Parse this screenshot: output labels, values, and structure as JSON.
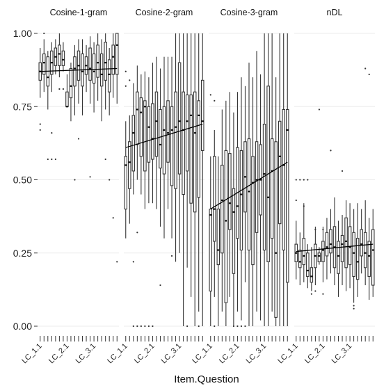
{
  "chart_data": {
    "type": "box",
    "xlabel": "Item.Question",
    "ylabel": "",
    "ylim": [
      0,
      1
    ],
    "yticks": [
      0,
      0.25,
      0.5,
      0.75,
      1
    ],
    "ytick_labels": [
      "0.00",
      "0.25",
      "0.50",
      "0.75",
      "1.00"
    ],
    "x_tick_labels": [
      "LC_1.1",
      "LC_2.1",
      "LC_3.1"
    ],
    "grid": true,
    "legend": "none",
    "categories_per_panel": 21,
    "panels": [
      {
        "name": "Cosine-1-gram",
        "trend_line": [
          0.87,
          0.88
        ],
        "boxes": [
          {
            "q1": 0.84,
            "median": 0.87,
            "q3": 0.9,
            "lo": 0.78,
            "hi": 0.95,
            "out": [
              0.69,
              0.67
            ]
          },
          {
            "q1": 0.86,
            "median": 0.9,
            "q3": 0.93,
            "lo": 0.8,
            "hi": 0.98,
            "out": [
              1.0
            ]
          },
          {
            "q1": 0.82,
            "median": 0.85,
            "q3": 0.92,
            "lo": 0.74,
            "hi": 0.94,
            "out": [
              0.57
            ]
          },
          {
            "q1": 0.86,
            "median": 0.9,
            "q3": 0.94,
            "lo": 0.8,
            "hi": 0.97,
            "out": [
              0.57,
              0.66
            ]
          },
          {
            "q1": 0.89,
            "median": 0.92,
            "q3": 0.95,
            "lo": 0.86,
            "hi": 0.98,
            "out": [
              0.57
            ]
          },
          {
            "q1": 0.89,
            "median": 0.93,
            "q3": 0.96,
            "lo": 0.85,
            "hi": 1.0,
            "out": [
              0.81
            ]
          },
          {
            "q1": 0.89,
            "median": 0.91,
            "q3": 0.94,
            "lo": 0.87,
            "hi": 0.97,
            "out": [
              0.81
            ]
          },
          {
            "q1": 0.75,
            "median": 0.75,
            "q3": 0.8,
            "lo": 0.75,
            "hi": 0.86,
            "out": []
          },
          {
            "q1": 0.78,
            "median": 0.82,
            "q3": 0.88,
            "lo": 0.7,
            "hi": 0.9,
            "out": []
          },
          {
            "q1": 0.82,
            "median": 0.88,
            "q3": 0.92,
            "lo": 0.72,
            "hi": 0.96,
            "out": [
              0.5
            ]
          },
          {
            "q1": 0.84,
            "median": 0.89,
            "q3": 0.94,
            "lo": 0.76,
            "hi": 0.98,
            "out": [
              0.64
            ]
          },
          {
            "q1": 0.82,
            "median": 0.87,
            "q3": 0.93,
            "lo": 0.72,
            "hi": 0.98,
            "out": []
          },
          {
            "q1": 0.86,
            "median": 0.89,
            "q3": 0.92,
            "lo": 0.8,
            "hi": 0.96,
            "out": []
          },
          {
            "q1": 0.84,
            "median": 0.88,
            "q3": 0.95,
            "lo": 0.76,
            "hi": 0.99,
            "out": [
              0.51
            ]
          },
          {
            "q1": 0.83,
            "median": 0.87,
            "q3": 0.93,
            "lo": 0.73,
            "hi": 0.97,
            "out": []
          },
          {
            "q1": 0.85,
            "median": 0.9,
            "q3": 0.96,
            "lo": 0.77,
            "hi": 1.0,
            "out": []
          },
          {
            "q1": 0.82,
            "median": 0.86,
            "q3": 0.93,
            "lo": 0.7,
            "hi": 0.98,
            "out": []
          },
          {
            "q1": 0.84,
            "median": 0.9,
            "q3": 0.97,
            "lo": 0.74,
            "hi": 1.0,
            "out": [
              0.57
            ]
          },
          {
            "q1": 0.8,
            "median": 0.86,
            "q3": 0.91,
            "lo": 0.72,
            "hi": 0.95,
            "out": [
              0.5
            ]
          },
          {
            "q1": 0.86,
            "median": 0.92,
            "q3": 0.96,
            "lo": 0.78,
            "hi": 1.0,
            "out": [
              0.37
            ]
          },
          {
            "q1": 0.86,
            "median": 0.96,
            "q3": 1.0,
            "lo": 0.76,
            "hi": 1.0,
            "out": [
              0.22
            ]
          }
        ]
      },
      {
        "name": "Cosine-2-gram",
        "trend_line": [
          0.61,
          0.69
        ],
        "boxes": [
          {
            "q1": 0.4,
            "median": 0.55,
            "q3": 0.58,
            "lo": 0.3,
            "hi": 0.7,
            "out": [
              0.87,
              0.82
            ]
          },
          {
            "q1": 0.47,
            "median": 0.56,
            "q3": 0.63,
            "lo": 0.35,
            "hi": 0.72,
            "out": [
              0.84
            ]
          },
          {
            "q1": 0.53,
            "median": 0.66,
            "q3": 0.72,
            "lo": 0.45,
            "hi": 0.83,
            "out": [
              0.0,
              0.22
            ]
          },
          {
            "q1": 0.62,
            "median": 0.74,
            "q3": 0.8,
            "lo": 0.5,
            "hi": 0.89,
            "out": [
              0.0,
              0.32
            ]
          },
          {
            "q1": 0.58,
            "median": 0.73,
            "q3": 0.78,
            "lo": 0.45,
            "hi": 0.86,
            "out": [
              0.0
            ]
          },
          {
            "q1": 0.53,
            "median": 0.75,
            "q3": 0.77,
            "lo": 0.4,
            "hi": 0.87,
            "out": [
              0.0
            ]
          },
          {
            "q1": 0.56,
            "median": 0.68,
            "q3": 0.75,
            "lo": 0.42,
            "hi": 0.85,
            "out": [
              0.0
            ]
          },
          {
            "q1": 0.57,
            "median": 0.64,
            "q3": 0.76,
            "lo": 0.42,
            "hi": 0.9,
            "out": [
              0.0
            ]
          },
          {
            "q1": 0.58,
            "median": 0.7,
            "q3": 0.8,
            "lo": 0.4,
            "hi": 0.92,
            "out": []
          },
          {
            "q1": 0.54,
            "median": 0.62,
            "q3": 0.74,
            "lo": 0.34,
            "hi": 0.88,
            "out": [
              0.14
            ]
          },
          {
            "q1": 0.52,
            "median": 0.67,
            "q3": 0.75,
            "lo": 0.3,
            "hi": 0.92,
            "out": []
          },
          {
            "q1": 0.56,
            "median": 0.66,
            "q3": 0.77,
            "lo": 0.4,
            "hi": 0.92,
            "out": []
          },
          {
            "q1": 0.48,
            "median": 0.67,
            "q3": 0.75,
            "lo": 0.3,
            "hi": 0.92,
            "out": [
              0.24
            ]
          },
          {
            "q1": 0.47,
            "median": 0.68,
            "q3": 0.8,
            "lo": 0.22,
            "hi": 1.0,
            "out": []
          },
          {
            "q1": 0.52,
            "median": 0.7,
            "q3": 0.9,
            "lo": 0.25,
            "hi": 1.0,
            "out": []
          },
          {
            "q1": 0.45,
            "median": 0.67,
            "q3": 0.8,
            "lo": 0.0,
            "hi": 1.0,
            "out": []
          },
          {
            "q1": 0.53,
            "median": 0.7,
            "q3": 0.79,
            "lo": 0.2,
            "hi": 1.0,
            "out": [
              0.0
            ]
          },
          {
            "q1": 0.42,
            "median": 0.72,
            "q3": 0.79,
            "lo": 0.1,
            "hi": 1.0,
            "out": []
          },
          {
            "q1": 0.39,
            "median": 0.66,
            "q3": 0.8,
            "lo": 0.0,
            "hi": 1.0,
            "out": []
          },
          {
            "q1": 0.44,
            "median": 0.72,
            "q3": 0.77,
            "lo": 0.05,
            "hi": 1.0,
            "out": [
              0.0
            ]
          },
          {
            "q1": 0.6,
            "median": 0.7,
            "q3": 0.84,
            "lo": 0.0,
            "hi": 1.0,
            "out": []
          }
        ]
      },
      {
        "name": "Cosine-3-gram",
        "trend_line": [
          0.4,
          0.56
        ],
        "boxes": [
          {
            "q1": 0.12,
            "median": 0.38,
            "q3": 0.4,
            "lo": 0.0,
            "hi": 0.58,
            "out": [
              0.79
            ]
          },
          {
            "q1": 0.29,
            "median": 0.4,
            "q3": 0.58,
            "lo": 0.1,
            "hi": 0.67,
            "out": [
              0.77,
              0.0
            ]
          },
          {
            "q1": 0.21,
            "median": 0.26,
            "q3": 0.4,
            "lo": 0.0,
            "hi": 0.58,
            "out": []
          },
          {
            "q1": 0.25,
            "median": 0.43,
            "q3": 0.55,
            "lo": 0.05,
            "hi": 0.74,
            "out": []
          },
          {
            "q1": 0.08,
            "median": 0.36,
            "q3": 0.6,
            "lo": 0.0,
            "hi": 0.77,
            "out": []
          },
          {
            "q1": 0.33,
            "median": 0.42,
            "q3": 0.59,
            "lo": 0.1,
            "hi": 0.8,
            "out": []
          },
          {
            "q1": 0.18,
            "median": 0.39,
            "q3": 0.47,
            "lo": 0.0,
            "hi": 0.73,
            "out": [
              0.0
            ]
          },
          {
            "q1": 0.3,
            "median": 0.41,
            "q3": 0.61,
            "lo": 0.05,
            "hi": 0.8,
            "out": [
              0.0
            ]
          },
          {
            "q1": 0.26,
            "median": 0.45,
            "q3": 0.6,
            "lo": 0.02,
            "hi": 0.85,
            "out": [
              0.0
            ]
          },
          {
            "q1": 0.39,
            "median": 0.51,
            "q3": 0.63,
            "lo": 0.15,
            "hi": 0.82,
            "out": [
              0.0
            ]
          },
          {
            "q1": 0.26,
            "median": 0.46,
            "q3": 0.64,
            "lo": 0.0,
            "hi": 0.9,
            "out": []
          },
          {
            "q1": 0.21,
            "median": 0.49,
            "q3": 0.58,
            "lo": 0.0,
            "hi": 0.85,
            "out": []
          },
          {
            "q1": 0.32,
            "median": 0.5,
            "q3": 0.63,
            "lo": 0.05,
            "hi": 0.94,
            "out": []
          },
          {
            "q1": 0.38,
            "median": 0.5,
            "q3": 0.62,
            "lo": 0.02,
            "hi": 0.86,
            "out": []
          },
          {
            "q1": 0.26,
            "median": 0.52,
            "q3": 0.69,
            "lo": 0.0,
            "hi": 1.0,
            "out": []
          },
          {
            "q1": 0.22,
            "median": 0.44,
            "q3": 0.82,
            "lo": 0.0,
            "hi": 1.0,
            "out": []
          },
          {
            "q1": 0.3,
            "median": 0.53,
            "q3": 0.64,
            "lo": 0.05,
            "hi": 1.0,
            "out": []
          },
          {
            "q1": 0.03,
            "median": 0.25,
            "q3": 0.63,
            "lo": 0.0,
            "hi": 0.85,
            "out": []
          },
          {
            "q1": 0.35,
            "median": 0.58,
            "q3": 0.7,
            "lo": 0.0,
            "hi": 1.0,
            "out": []
          },
          {
            "q1": 0.26,
            "median": 0.55,
            "q3": 0.74,
            "lo": 0.0,
            "hi": 1.0,
            "out": []
          },
          {
            "q1": 0.15,
            "median": 0.67,
            "q3": 0.74,
            "lo": 0.0,
            "hi": 1.0,
            "out": []
          }
        ]
      },
      {
        "name": "nDL",
        "trend_line": [
          0.255,
          0.28
        ],
        "boxes": [
          {
            "q1": 0.22,
            "median": 0.25,
            "q3": 0.28,
            "lo": 0.16,
            "hi": 0.36,
            "out": [
              0.5,
              0.43
            ]
          },
          {
            "q1": 0.2,
            "median": 0.22,
            "q3": 0.26,
            "lo": 0.14,
            "hi": 0.32,
            "out": [
              0.5
            ]
          },
          {
            "q1": 0.21,
            "median": 0.24,
            "q3": 0.3,
            "lo": 0.15,
            "hi": 0.42,
            "out": [
              0.5,
              0.41
            ]
          },
          {
            "q1": 0.17,
            "median": 0.19,
            "q3": 0.25,
            "lo": 0.13,
            "hi": 0.28,
            "out": [
              0.5
            ]
          },
          {
            "q1": 0.15,
            "median": 0.17,
            "q3": 0.2,
            "lo": 0.12,
            "hi": 0.27,
            "out": [
              0.11
            ]
          },
          {
            "q1": 0.2,
            "median": 0.24,
            "q3": 0.28,
            "lo": 0.14,
            "hi": 0.34,
            "out": [
              0.33,
              0.12
            ]
          },
          {
            "q1": 0.22,
            "median": 0.24,
            "q3": 0.25,
            "lo": 0.21,
            "hi": 0.27,
            "out": [
              0.74
            ]
          },
          {
            "q1": 0.22,
            "median": 0.26,
            "q3": 0.29,
            "lo": 0.15,
            "hi": 0.34,
            "out": [
              0.33,
              0.11
            ]
          },
          {
            "q1": 0.24,
            "median": 0.27,
            "q3": 0.32,
            "lo": 0.16,
            "hi": 0.37,
            "out": []
          },
          {
            "q1": 0.25,
            "median": 0.28,
            "q3": 0.33,
            "lo": 0.18,
            "hi": 0.4,
            "out": [
              0.6
            ]
          },
          {
            "q1": 0.2,
            "median": 0.27,
            "q3": 0.34,
            "lo": 0.14,
            "hi": 0.44,
            "out": []
          },
          {
            "q1": 0.18,
            "median": 0.24,
            "q3": 0.29,
            "lo": 0.1,
            "hi": 0.36,
            "out": []
          },
          {
            "q1": 0.22,
            "median": 0.28,
            "q3": 0.31,
            "lo": 0.14,
            "hi": 0.38,
            "out": [
              0.53
            ]
          },
          {
            "q1": 0.2,
            "median": 0.29,
            "q3": 0.37,
            "lo": 0.12,
            "hi": 0.43,
            "out": []
          },
          {
            "q1": 0.21,
            "median": 0.27,
            "q3": 0.34,
            "lo": 0.13,
            "hi": 0.42,
            "out": []
          },
          {
            "q1": 0.17,
            "median": 0.25,
            "q3": 0.32,
            "lo": 0.08,
            "hi": 0.4,
            "out": [
              0.07,
              0.06
            ]
          },
          {
            "q1": 0.16,
            "median": 0.22,
            "q3": 0.3,
            "lo": 0.1,
            "hi": 0.42,
            "out": []
          },
          {
            "q1": 0.24,
            "median": 0.28,
            "q3": 0.33,
            "lo": 0.18,
            "hi": 0.4,
            "out": []
          },
          {
            "q1": 0.2,
            "median": 0.25,
            "q3": 0.32,
            "lo": 0.14,
            "hi": 0.43,
            "out": [
              0.88
            ]
          },
          {
            "q1": 0.17,
            "median": 0.24,
            "q3": 0.29,
            "lo": 0.09,
            "hi": 0.37,
            "out": [
              0.86
            ]
          },
          {
            "q1": 0.14,
            "median": 0.26,
            "q3": 0.33,
            "lo": 0.1,
            "hi": 0.4,
            "out": []
          }
        ]
      }
    ]
  }
}
